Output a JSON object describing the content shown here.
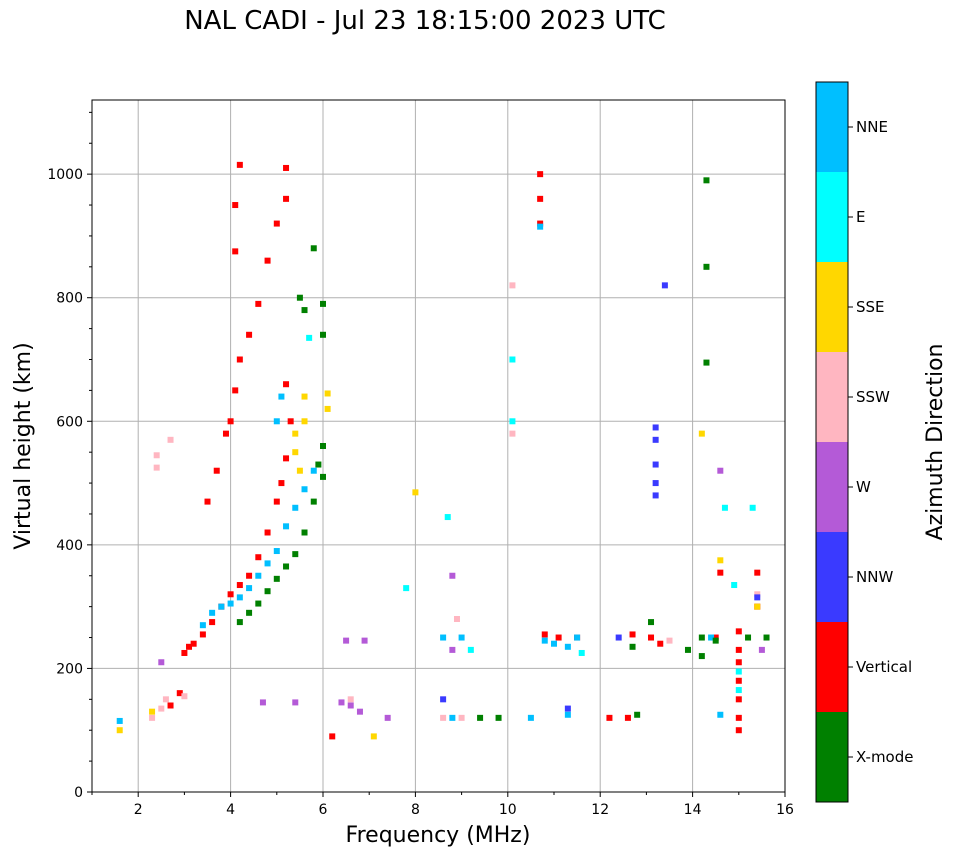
{
  "chart_data": {
    "type": "scatter",
    "title": "NAL CADI - Jul 23 18:15:00 2023 UTC",
    "xlabel": "Frequency (MHz)",
    "ylabel": "Virtual height (km)",
    "xlim": [
      1,
      16
    ],
    "ylim": [
      0,
      1120
    ],
    "xticks": [
      2,
      4,
      6,
      8,
      10,
      12,
      14,
      16
    ],
    "yticks": [
      0,
      200,
      400,
      600,
      800,
      1000
    ],
    "grid": true,
    "colorbar": {
      "label": "Azimuth Direction",
      "categories": [
        {
          "name": "X-mode",
          "color": "#008000"
        },
        {
          "name": "Vertical",
          "color": "#ff0000"
        },
        {
          "name": "NNW",
          "color": "#3a3aff"
        },
        {
          "name": "W",
          "color": "#b45ad7"
        },
        {
          "name": "SSW",
          "color": "#ffb6c1"
        },
        {
          "name": "SSE",
          "color": "#ffd700"
        },
        {
          "name": "E",
          "color": "#00ffff"
        },
        {
          "name": "NNE",
          "color": "#00bfff"
        }
      ]
    },
    "series": [
      {
        "name": "Vertical",
        "points": [
          [
            3.0,
            225
          ],
          [
            3.1,
            235
          ],
          [
            3.2,
            240
          ],
          [
            3.4,
            255
          ],
          [
            3.6,
            275
          ],
          [
            3.8,
            300
          ],
          [
            4.0,
            320
          ],
          [
            4.2,
            335
          ],
          [
            4.4,
            350
          ],
          [
            4.6,
            380
          ],
          [
            4.8,
            420
          ],
          [
            5.0,
            470
          ],
          [
            5.1,
            500
          ],
          [
            5.2,
            540
          ],
          [
            5.3,
            600
          ],
          [
            5.2,
            660
          ],
          [
            3.5,
            470
          ],
          [
            3.7,
            520
          ],
          [
            3.9,
            580
          ],
          [
            4.0,
            600
          ],
          [
            4.1,
            650
          ],
          [
            4.2,
            700
          ],
          [
            4.4,
            740
          ],
          [
            4.6,
            790
          ],
          [
            4.8,
            860
          ],
          [
            5.0,
            920
          ],
          [
            5.2,
            960
          ],
          [
            5.2,
            1010
          ],
          [
            4.1,
            950
          ],
          [
            4.1,
            875
          ],
          [
            4.2,
            1015
          ],
          [
            10.7,
            1000
          ],
          [
            10.7,
            960
          ],
          [
            10.7,
            920
          ],
          [
            2.7,
            140
          ],
          [
            2.9,
            160
          ],
          [
            6.2,
            90
          ],
          [
            10.8,
            255
          ],
          [
            11.1,
            250
          ],
          [
            11.5,
            250
          ],
          [
            12.7,
            255
          ],
          [
            13.1,
            250
          ],
          [
            13.3,
            240
          ],
          [
            14.5,
            250
          ],
          [
            15.0,
            260
          ],
          [
            15.0,
            230
          ],
          [
            15.0,
            210
          ],
          [
            15.0,
            180
          ],
          [
            15.0,
            150
          ],
          [
            15.0,
            120
          ],
          [
            15.0,
            100
          ],
          [
            15.4,
            355
          ],
          [
            15.4,
            300
          ],
          [
            14.6,
            355
          ],
          [
            12.6,
            120
          ],
          [
            12.2,
            120
          ]
        ]
      },
      {
        "name": "NNE",
        "points": [
          [
            3.4,
            270
          ],
          [
            3.6,
            290
          ],
          [
            3.8,
            300
          ],
          [
            4.0,
            305
          ],
          [
            4.2,
            315
          ],
          [
            4.4,
            330
          ],
          [
            4.6,
            350
          ],
          [
            4.8,
            370
          ],
          [
            5.0,
            390
          ],
          [
            5.2,
            430
          ],
          [
            5.4,
            460
          ],
          [
            5.6,
            490
          ],
          [
            5.8,
            520
          ],
          [
            5.0,
            600
          ],
          [
            5.1,
            640
          ],
          [
            8.6,
            250
          ],
          [
            9.0,
            250
          ],
          [
            10.8,
            245
          ],
          [
            11.0,
            240
          ],
          [
            11.3,
            235
          ],
          [
            11.5,
            250
          ],
          [
            10.7,
            915
          ],
          [
            14.4,
            250
          ],
          [
            14.6,
            125
          ],
          [
            1.6,
            115
          ],
          [
            8.8,
            120
          ],
          [
            10.5,
            120
          ],
          [
            11.3,
            125
          ]
        ]
      },
      {
        "name": "X-mode",
        "points": [
          [
            4.2,
            275
          ],
          [
            4.4,
            290
          ],
          [
            4.6,
            305
          ],
          [
            4.8,
            325
          ],
          [
            5.0,
            345
          ],
          [
            5.2,
            365
          ],
          [
            5.4,
            385
          ],
          [
            5.6,
            420
          ],
          [
            5.8,
            470
          ],
          [
            6.0,
            510
          ],
          [
            5.9,
            530
          ],
          [
            6.0,
            560
          ],
          [
            6.0,
            740
          ],
          [
            5.8,
            880
          ],
          [
            5.6,
            780
          ],
          [
            5.5,
            800
          ],
          [
            6.0,
            790
          ],
          [
            14.3,
            990
          ],
          [
            14.3,
            850
          ],
          [
            14.3,
            695
          ],
          [
            14.2,
            250
          ],
          [
            14.5,
            245
          ],
          [
            15.2,
            250
          ],
          [
            15.6,
            250
          ],
          [
            12.7,
            235
          ],
          [
            13.1,
            275
          ],
          [
            14.2,
            220
          ],
          [
            13.9,
            230
          ],
          [
            12.8,
            125
          ],
          [
            9.4,
            120
          ],
          [
            9.8,
            120
          ]
        ]
      },
      {
        "name": "SSE",
        "points": [
          [
            5.4,
            550
          ],
          [
            5.4,
            580
          ],
          [
            5.6,
            600
          ],
          [
            5.6,
            640
          ],
          [
            6.1,
            620
          ],
          [
            6.1,
            645
          ],
          [
            5.5,
            520
          ],
          [
            14.6,
            375
          ],
          [
            15.4,
            300
          ],
          [
            2.3,
            130
          ],
          [
            1.6,
            100
          ],
          [
            7.1,
            90
          ],
          [
            8.0,
            485
          ],
          [
            14.2,
            580
          ]
        ]
      },
      {
        "name": "SSW",
        "points": [
          [
            2.3,
            120
          ],
          [
            2.5,
            135
          ],
          [
            2.6,
            150
          ],
          [
            3.0,
            155
          ],
          [
            2.4,
            545
          ],
          [
            2.4,
            525
          ],
          [
            2.7,
            570
          ],
          [
            6.6,
            150
          ],
          [
            8.6,
            120
          ],
          [
            9.0,
            120
          ],
          [
            8.9,
            280
          ],
          [
            15.4,
            320
          ],
          [
            10.1,
            820
          ],
          [
            10.1,
            580
          ],
          [
            13.5,
            245
          ]
        ]
      },
      {
        "name": "W",
        "points": [
          [
            4.7,
            145
          ],
          [
            5.4,
            145
          ],
          [
            6.4,
            145
          ],
          [
            6.6,
            140
          ],
          [
            6.8,
            130
          ],
          [
            7.4,
            120
          ],
          [
            6.5,
            245
          ],
          [
            6.9,
            245
          ],
          [
            8.8,
            350
          ],
          [
            8.8,
            230
          ],
          [
            14.6,
            520
          ],
          [
            15.5,
            230
          ],
          [
            2.5,
            210
          ]
        ]
      },
      {
        "name": "NNW",
        "points": [
          [
            13.2,
            590
          ],
          [
            13.2,
            570
          ],
          [
            13.2,
            530
          ],
          [
            13.2,
            500
          ],
          [
            13.2,
            480
          ],
          [
            13.4,
            820
          ],
          [
            15.4,
            315
          ],
          [
            8.6,
            150
          ],
          [
            11.3,
            135
          ],
          [
            12.4,
            250
          ]
        ]
      },
      {
        "name": "E",
        "points": [
          [
            14.7,
            460
          ],
          [
            15.3,
            460
          ],
          [
            14.9,
            335
          ],
          [
            8.7,
            445
          ],
          [
            10.1,
            700
          ],
          [
            10.1,
            600
          ],
          [
            15.0,
            195
          ],
          [
            15.0,
            165
          ],
          [
            9.2,
            230
          ],
          [
            11.6,
            225
          ],
          [
            7.8,
            330
          ],
          [
            5.7,
            735
          ]
        ]
      }
    ]
  }
}
